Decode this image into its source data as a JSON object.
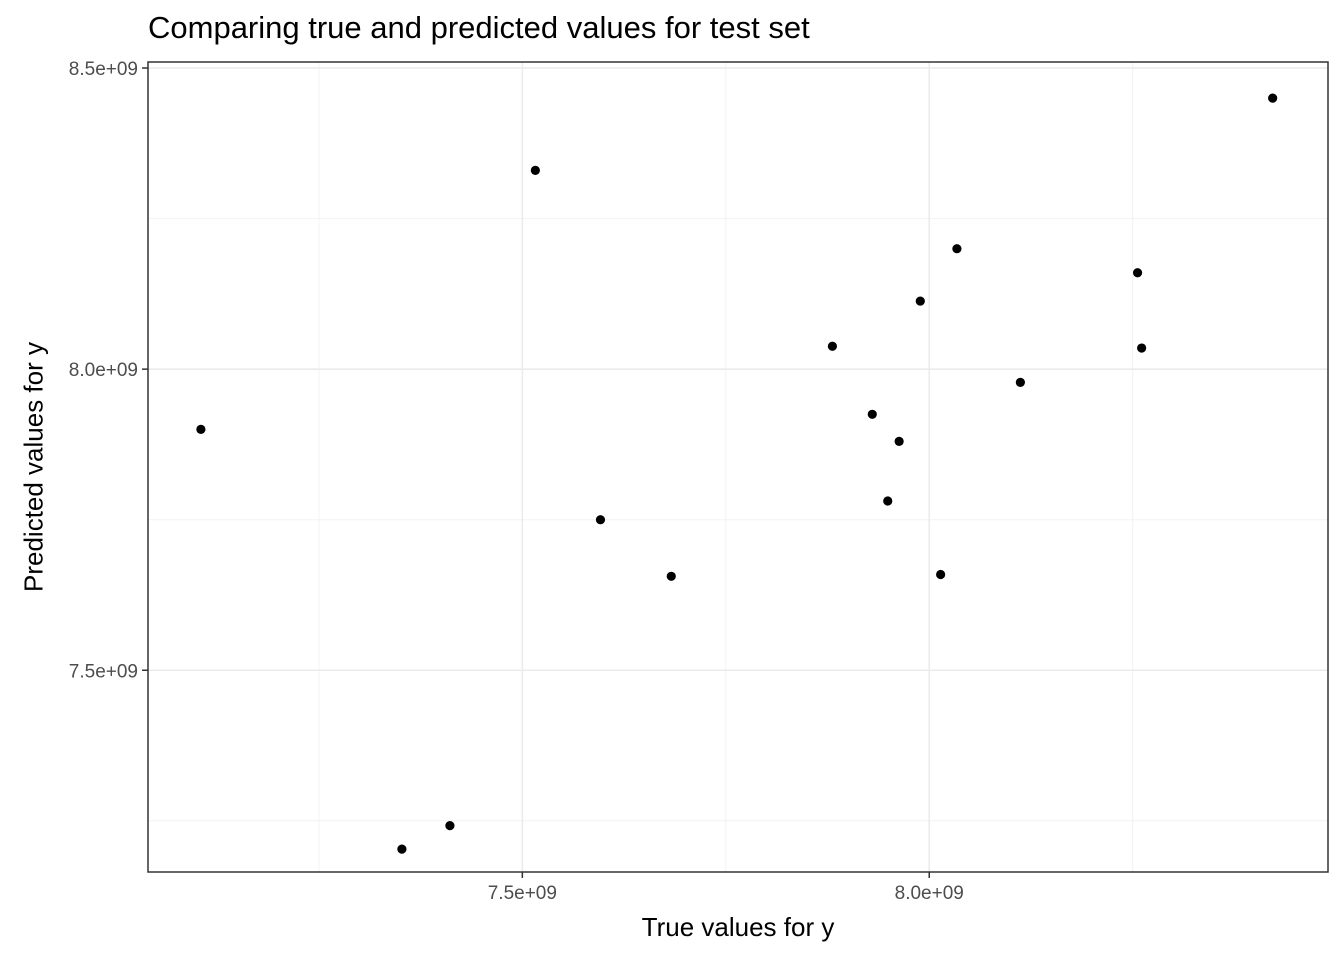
{
  "chart_data": {
    "type": "scatter",
    "title": "Comparing true and predicted values for test set",
    "xlabel": "True values for y",
    "ylabel": "Predicted values for y",
    "xlim": [
      7040000000.0,
      8490000000.0
    ],
    "ylim": [
      7165000000.0,
      8510000000.0
    ],
    "x_ticks": [
      {
        "value": 7500000000.0,
        "label": "7.5e+09"
      },
      {
        "value": 8000000000.0,
        "label": "8.0e+09"
      }
    ],
    "y_ticks": [
      {
        "value": 7500000000.0,
        "label": "7.5e+09"
      },
      {
        "value": 8000000000.0,
        "label": "8.0e+09"
      },
      {
        "value": 8500000000.0,
        "label": "8.5e+09"
      }
    ],
    "x_minor_grid": [
      7250000000.0,
      7750000000.0,
      8250000000.0
    ],
    "y_minor_grid": [
      7250000000.0,
      7750000000.0,
      8250000000.0
    ],
    "grid": true,
    "legend": "none",
    "point_color": "#000000",
    "points": [
      {
        "x": 7105000000.0,
        "y": 7900000000.0
      },
      {
        "x": 7352000000.0,
        "y": 7203000000.0
      },
      {
        "x": 7411000000.0,
        "y": 7242000000.0
      },
      {
        "x": 7516000000.0,
        "y": 8330000000.0
      },
      {
        "x": 7596000000.0,
        "y": 7750000000.0
      },
      {
        "x": 7683000000.0,
        "y": 7656000000.0
      },
      {
        "x": 7881000000.0,
        "y": 8038000000.0
      },
      {
        "x": 7930000000.0,
        "y": 7925000000.0
      },
      {
        "x": 7949000000.0,
        "y": 7781000000.0
      },
      {
        "x": 7963000000.0,
        "y": 7880000000.0
      },
      {
        "x": 7989000000.0,
        "y": 8113000000.0
      },
      {
        "x": 8014000000.0,
        "y": 7659000000.0
      },
      {
        "x": 8034000000.0,
        "y": 8200000000.0
      },
      {
        "x": 8112000000.0,
        "y": 7978000000.0
      },
      {
        "x": 8256000000.0,
        "y": 8160000000.0
      },
      {
        "x": 8261000000.0,
        "y": 8035000000.0
      },
      {
        "x": 8422000000.0,
        "y": 8450000000.0
      }
    ]
  }
}
